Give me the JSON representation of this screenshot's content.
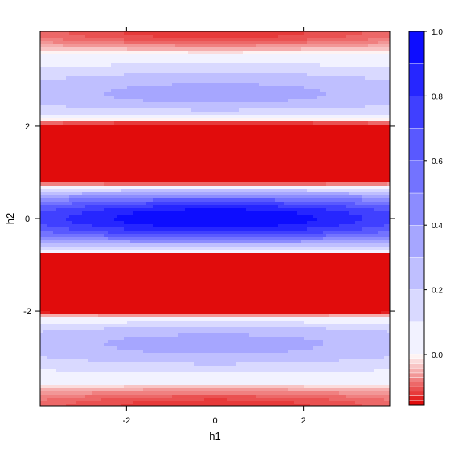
{
  "chart_data": {
    "type": "heatmap",
    "xlabel": "h1",
    "ylabel": "h2",
    "xlim": [
      -3.95,
      3.95
    ],
    "ylim": [
      -4.05,
      4.05
    ],
    "x_ticks": [
      -2,
      0,
      2
    ],
    "y_ticks": [
      -2,
      0,
      2
    ],
    "x_tick_labels": [
      "-2",
      "0",
      "2"
    ],
    "y_tick_labels": [
      "-2",
      "0",
      "2"
    ],
    "colorbar": {
      "range": [
        -0.11,
        1.0
      ],
      "ticks": [
        0.0,
        0.2,
        0.4,
        0.6,
        0.8,
        1.0
      ],
      "tick_labels": [
        "0.0",
        "0.2",
        "0.4",
        "0.6",
        "0.8",
        "1.0"
      ],
      "positive_levels": [
        0.0,
        0.1,
        0.2,
        0.3,
        0.4,
        0.5,
        0.6,
        0.7,
        0.8,
        0.9,
        1.0
      ],
      "negative_levels": [
        -0.11,
        -0.1,
        -0.09,
        -0.08,
        -0.07,
        -0.06,
        -0.05,
        -0.04,
        -0.03,
        -0.02,
        -0.01,
        0.0
      ],
      "colors": {
        "high": "#0000ff",
        "zero": "#ffffff",
        "low": "#e00000"
      }
    },
    "grid": false,
    "legend": "right",
    "surface": "filled contour of a function peaking at 1.0 at (0, 0), decaying slowly along h1 and oscillating in sign along h2"
  }
}
